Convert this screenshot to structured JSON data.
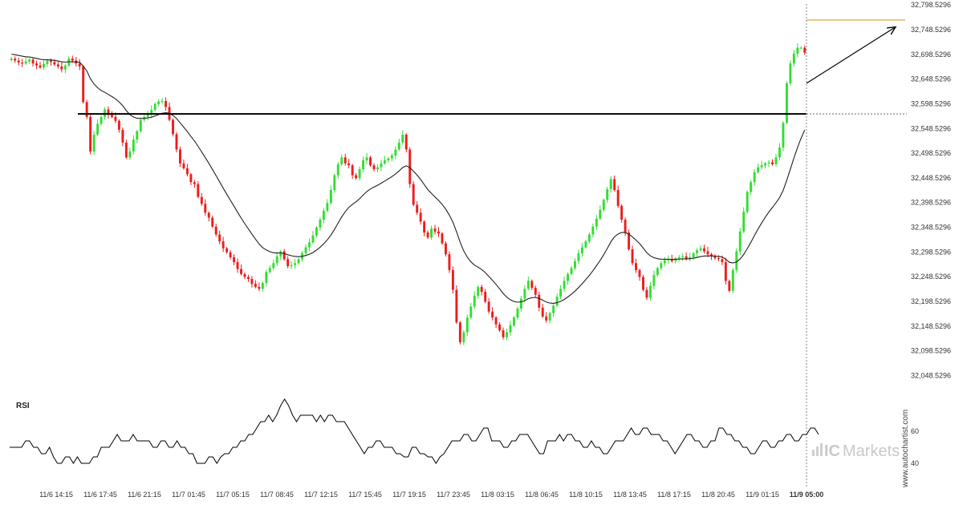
{
  "chart_data": {
    "type": "candlestick",
    "price_axis": {
      "labels": [
        "32,798.5296",
        "32,748.5296",
        "32,698.5296",
        "32,648.5296",
        "32,598.5296",
        "32,548.5296",
        "32,498.5296",
        "32,448.5296",
        "32,398.5296",
        "32,348.5296",
        "32,298.5296",
        "32,248.5296",
        "32,198.5296",
        "32,148.5296",
        "32,098.5296",
        "32,048.5296"
      ],
      "ylim": [
        32018.5296,
        32808.5296
      ]
    },
    "time_axis": {
      "labels": [
        "11/6 14:15",
        "11/6 17:45",
        "11/6 21:15",
        "11/7 01:45",
        "11/7 05:15",
        "11/7 08:45",
        "11/7 12:15",
        "11/7 15:45",
        "11/7 19:15",
        "11/7 23:45",
        "11/8 03:15",
        "11/8 06:45",
        "11/8 10:15",
        "11/8 13:45",
        "11/8 17:15",
        "11/8 20:45",
        "11/9 01:15",
        "11/9 05:00"
      ],
      "highlight": "11/9 05:00"
    },
    "closes": [
      32690,
      32686,
      32682,
      32680,
      32684,
      32688,
      32680,
      32676,
      32672,
      32679,
      32686,
      32683,
      32678,
      32674,
      32668,
      32676,
      32690,
      32686,
      32680,
      32674,
      32602,
      32572,
      32502,
      32536,
      32558,
      32572,
      32587,
      32576,
      32572,
      32564,
      32546,
      32520,
      32490,
      32502,
      32526,
      32543,
      32566,
      32572,
      32577,
      32586,
      32598,
      32603,
      32604,
      32592,
      32566,
      32537,
      32506,
      32478,
      32468,
      32456,
      32440,
      32436,
      32410,
      32396,
      32378,
      32368,
      32350,
      32334,
      32320,
      32306,
      32298,
      32288,
      32278,
      32264,
      32254,
      32248,
      32244,
      32234,
      32228,
      32224,
      32236,
      32258,
      32266,
      32276,
      32290,
      32300,
      32284,
      32270,
      32272,
      32276,
      32284,
      32296,
      32308,
      32318,
      32332,
      32348,
      32364,
      32382,
      32398,
      32424,
      32454,
      32476,
      32490,
      32478,
      32474,
      32454,
      32448,
      32466,
      32484,
      32490,
      32474,
      32466,
      32470,
      32478,
      32484,
      32488,
      32494,
      32506,
      32520,
      32536,
      32506,
      32436,
      32394,
      32378,
      32360,
      32338,
      32328,
      32346,
      32340,
      32336,
      32316,
      32294,
      32262,
      32222,
      32156,
      32116,
      32136,
      32166,
      32188,
      32210,
      32228,
      32218,
      32198,
      32178,
      32166,
      32152,
      32140,
      32126,
      32136,
      32150,
      32166,
      32184,
      32204,
      32224,
      32240,
      32226,
      32212,
      32186,
      32168,
      32160,
      32175,
      32190,
      32208,
      32224,
      32240,
      32254,
      32266,
      32280,
      32296,
      32308,
      32320,
      32334,
      32350,
      32366,
      32384,
      32404,
      32426,
      32446,
      32424,
      32392,
      32364,
      32338,
      32304,
      32276,
      32262,
      32248,
      32222,
      32206,
      32230,
      32252,
      32266,
      32276,
      32282,
      32284,
      32280,
      32286,
      32288,
      32290,
      32284,
      32288,
      32296,
      32302,
      32306,
      32300,
      32294,
      32290,
      32286,
      32284,
      32278,
      32240,
      32220,
      32262,
      32300,
      32340,
      32380,
      32420,
      32440,
      32460,
      32470,
      32474,
      32478,
      32480,
      32476,
      32490,
      32510,
      32560,
      32640,
      32680,
      32700,
      32712,
      32712,
      32702
    ],
    "ma_start": 32700,
    "support_level": 32578,
    "target_level": 32768,
    "arrow": {
      "from": 32640,
      "to": 32754
    },
    "rsi": {
      "label": "RSI",
      "axis_labels": [
        "60",
        "40"
      ],
      "values": [
        50,
        50,
        50,
        50,
        54,
        54,
        50,
        50,
        46,
        46,
        50,
        44,
        40,
        40,
        44,
        44,
        40,
        44,
        40,
        40,
        40,
        44,
        44,
        50,
        50,
        50,
        54,
        58,
        54,
        54,
        54,
        58,
        54,
        54,
        54,
        54,
        50,
        50,
        54,
        54,
        50,
        50,
        54,
        50,
        50,
        46,
        46,
        40,
        40,
        40,
        44,
        44,
        40,
        44,
        46,
        46,
        50,
        50,
        54,
        54,
        58,
        58,
        62,
        66,
        66,
        70,
        66,
        70,
        76,
        80,
        76,
        70,
        66,
        70,
        70,
        70,
        70,
        66,
        70,
        66,
        70,
        70,
        66,
        66,
        66,
        62,
        58,
        54,
        50,
        46,
        50,
        50,
        54,
        54,
        50,
        50,
        50,
        46,
        46,
        44,
        44,
        50,
        50,
        46,
        46,
        44,
        44,
        40,
        44,
        46,
        50,
        54,
        54,
        54,
        58,
        58,
        54,
        54,
        58,
        62,
        62,
        54,
        54,
        54,
        50,
        50,
        54,
        54,
        58,
        58,
        58,
        54,
        50,
        46,
        46,
        54,
        54,
        54,
        58,
        54,
        58,
        58,
        54,
        54,
        50,
        50,
        54,
        50,
        50,
        46,
        46,
        50,
        54,
        54,
        54,
        58,
        62,
        58,
        58,
        62,
        62,
        58,
        58,
        58,
        54,
        54,
        50,
        46,
        50,
        54,
        58,
        58,
        54,
        54,
        50,
        50,
        54,
        54,
        62,
        62,
        58,
        58,
        54,
        54,
        50,
        50,
        46,
        46,
        50,
        54,
        54,
        50,
        50,
        54,
        54,
        58,
        58,
        54,
        54,
        58,
        58,
        62,
        62,
        58
      ],
      "ylim": [
        30,
        80
      ],
      "ticks": [
        60,
        40
      ]
    }
  },
  "watermark": {
    "vertical_text": "www.autochartist.com",
    "brand_prefix": "IC",
    "brand_suffix": "Markets"
  },
  "colors": {
    "bull": "#33dd33",
    "bear": "#ee1c1c",
    "support": "#000000",
    "target": "#d9a441",
    "grid_dash": "#888888",
    "ma": "#222222",
    "rsi": "#000000"
  }
}
